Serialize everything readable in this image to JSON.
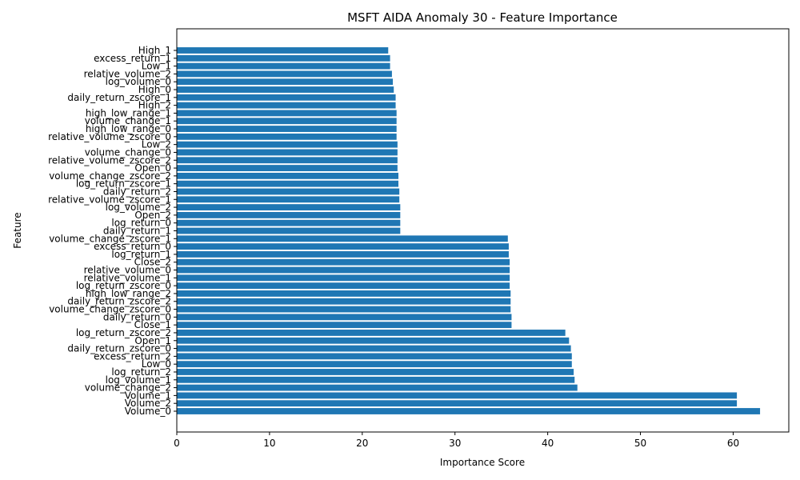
{
  "chart_data": {
    "type": "bar",
    "orientation": "horizontal",
    "title": "MSFT AIDA Anomaly 30 - Feature Importance",
    "xlabel": "Importance Score",
    "ylabel": "Feature",
    "xlim": [
      0,
      66
    ],
    "xticks": [
      0,
      10,
      20,
      30,
      40,
      50,
      60
    ],
    "grid": false,
    "bar_color": "#1f77b4",
    "categories": [
      "Volume_0",
      "Volume_2",
      "Volume_1",
      "volume_change_2",
      "log_volume_1",
      "log_return_2",
      "Low_0",
      "excess_return_2",
      "daily_return_zscore_0",
      "Open_1",
      "log_return_zscore_2",
      "Close_1",
      "daily_return_0",
      "volume_change_zscore_0",
      "daily_return_zscore_2",
      "high_low_range_2",
      "log_return_zscore_0",
      "relative_volume_1",
      "relative_volume_0",
      "Close_2",
      "log_return_1",
      "excess_return_0",
      "volume_change_zscore_1",
      "daily_return_1",
      "log_return_0",
      "Open_2",
      "log_volume_2",
      "relative_volume_zscore_1",
      "daily_return_2",
      "log_return_zscore_1",
      "volume_change_zscore_2",
      "Open_0",
      "relative_volume_zscore_2",
      "volume_change_0",
      "Low_2",
      "relative_volume_zscore_0",
      "high_low_range_0",
      "volume_change_1",
      "high_low_range_1",
      "High_2",
      "daily_return_zscore_1",
      "High_0",
      "log_volume_0",
      "relative_volume_2",
      "Low_1",
      "excess_return_1",
      "High_1"
    ],
    "values": [
      62.9,
      60.4,
      60.4,
      43.2,
      42.9,
      42.8,
      42.6,
      42.6,
      42.5,
      42.3,
      41.9,
      36.1,
      36.1,
      36.0,
      36.0,
      36.0,
      35.9,
      35.9,
      35.9,
      35.9,
      35.8,
      35.8,
      35.7,
      24.1,
      24.1,
      24.1,
      24.1,
      24.0,
      24.0,
      23.9,
      23.9,
      23.8,
      23.8,
      23.8,
      23.8,
      23.7,
      23.7,
      23.7,
      23.7,
      23.6,
      23.6,
      23.4,
      23.3,
      23.2,
      23.0,
      23.0,
      22.8
    ]
  }
}
